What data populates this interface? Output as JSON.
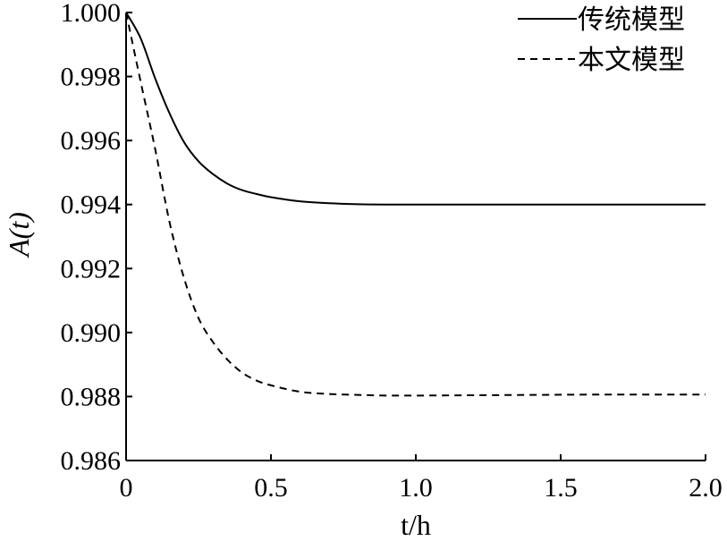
{
  "chart_data": {
    "type": "line",
    "title": "",
    "xlabel": "t/h",
    "ylabel": "A(t)",
    "xlim": [
      0,
      2.0
    ],
    "ylim": [
      0.986,
      1.0
    ],
    "xticks": [
      0,
      0.5,
      1.0,
      1.5,
      2.0
    ],
    "xtick_labels": [
      "0",
      "0.5",
      "1.0",
      "1.5",
      "2.0"
    ],
    "yticks": [
      0.986,
      0.988,
      0.99,
      0.992,
      0.994,
      0.996,
      0.998,
      1.0
    ],
    "ytick_labels": [
      "0.986",
      "0.988",
      "0.990",
      "0.992",
      "0.994",
      "0.996",
      "0.998",
      "1.000"
    ],
    "grid": false,
    "legend_position": "top-right",
    "x": [
      0,
      0.05,
      0.1,
      0.15,
      0.2,
      0.25,
      0.3,
      0.35,
      0.4,
      0.45,
      0.5,
      0.6,
      0.7,
      0.8,
      0.9,
      1.0,
      1.2,
      1.4,
      1.6,
      1.8,
      2.0
    ],
    "series": [
      {
        "name": "传统模型",
        "style": "solid",
        "values": [
          1.0,
          0.9992,
          0.99795,
          0.99685,
          0.99595,
          0.99535,
          0.99495,
          0.99465,
          0.99445,
          0.99433,
          0.99423,
          0.9941,
          0.99404,
          0.99401,
          0.994,
          0.994,
          0.994,
          0.994,
          0.994,
          0.994,
          0.994
        ]
      },
      {
        "name": "本文模型",
        "style": "dashed",
        "values": [
          1.0,
          0.99785,
          0.99575,
          0.99345,
          0.9917,
          0.99045,
          0.9897,
          0.98915,
          0.98875,
          0.9885,
          0.98835,
          0.98815,
          0.98808,
          0.98805,
          0.98803,
          0.98803,
          0.98804,
          0.98805,
          0.98806,
          0.98806,
          0.98806
        ]
      }
    ]
  }
}
